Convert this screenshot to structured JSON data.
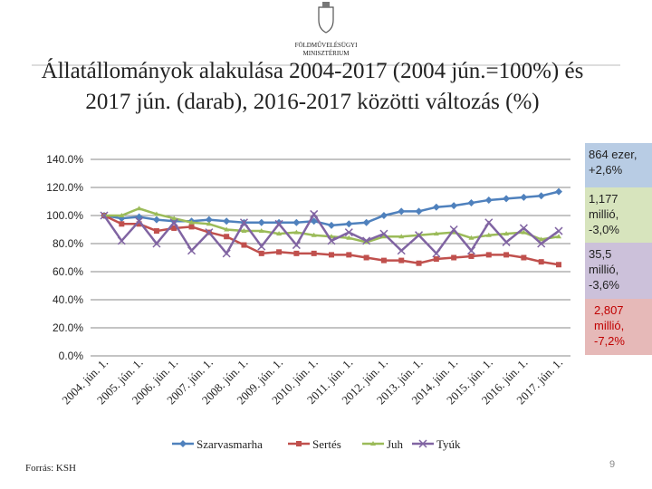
{
  "header": {
    "ministry": [
      "FÖLDMŰVELÉSÜGYI",
      "MINISZTÉRIUM"
    ]
  },
  "chart_data": {
    "type": "line",
    "title": "Állatállományok alakulása 2004-2017 (2004 jún.=100%) és 2017 jún. (darab), 2016-2017 közötti változás (%)",
    "categories": [
      "2004. jún. 1.",
      null,
      "2005. jún. 1.",
      null,
      "2006. jún. 1.",
      null,
      "2007. jún. 1.",
      null,
      "2008. jún. 1.",
      null,
      "2009. jún. 1.",
      null,
      "2010. jún. 1.",
      null,
      "2011. jún. 1.",
      null,
      "2012. jún. 1.",
      null,
      "2013. jún. 1.",
      null,
      "2014. jún. 1.",
      null,
      "2015. jún. 1.",
      null,
      "2016. jún. 1.",
      null,
      "2017. jún. 1."
    ],
    "series": [
      {
        "name": "Szarvasmarha",
        "color": "#4f81bd",
        "marker": "diamond",
        "values": [
          100,
          98,
          99,
          97,
          96,
          96,
          97,
          96,
          95,
          95,
          95,
          95,
          96,
          93,
          94,
          95,
          100,
          103,
          103,
          106,
          107,
          109,
          111,
          112,
          113,
          114,
          117
        ]
      },
      {
        "name": "Sertés",
        "color": "#c0504d",
        "marker": "square",
        "values": [
          100,
          94,
          94,
          89,
          91,
          92,
          88,
          85,
          79,
          73,
          74,
          73,
          73,
          72,
          72,
          70,
          68,
          68,
          66,
          69,
          70,
          71,
          72,
          72,
          70,
          67,
          65
        ]
      },
      {
        "name": "Juh",
        "color": "#9bbb59",
        "marker": "triangle",
        "values": [
          100,
          100,
          105,
          101,
          98,
          95,
          94,
          90,
          89,
          89,
          87,
          88,
          86,
          85,
          84,
          81,
          85,
          85,
          86,
          87,
          88,
          84,
          86,
          87,
          88,
          83,
          85
        ]
      },
      {
        "name": "Tyúk",
        "color": "#8064a2",
        "marker": "x",
        "values": [
          100,
          82,
          96,
          80,
          95,
          75,
          88,
          73,
          95,
          78,
          94,
          79,
          101,
          82,
          88,
          82,
          87,
          75,
          86,
          73,
          90,
          75,
          95,
          81,
          91,
          80,
          89
        ]
      }
    ],
    "ylim": [
      0,
      140
    ],
    "yticks": [
      {
        "value": 0,
        "label": "0.0%"
      },
      {
        "value": 20,
        "label": "20.0%"
      },
      {
        "value": 40,
        "label": "40.0%"
      },
      {
        "value": 60,
        "label": "60.0%"
      },
      {
        "value": 80,
        "label": "80.0%"
      },
      {
        "value": 100,
        "label": "100.0%"
      },
      {
        "value": 120,
        "label": "120.0%"
      },
      {
        "value": 140,
        "label": "140.0%"
      }
    ],
    "grid": true
  },
  "boxes": [
    {
      "lines": [
        "864 ezer,",
        "+2,6%"
      ],
      "color": "#b8cce4"
    },
    {
      "lines": [
        "1,177",
        "millió,",
        "-3,0%"
      ],
      "color": "#d7e4bd"
    },
    {
      "lines": [
        "35,5",
        "millió,",
        "-3,6%"
      ],
      "color": "#ccc1da"
    },
    {
      "lines": [
        "2,807",
        "millió,",
        "-7,2%"
      ],
      "color": "#e6b9b8"
    }
  ],
  "footer": {
    "source": "Forrás: KSH",
    "page": "9"
  }
}
